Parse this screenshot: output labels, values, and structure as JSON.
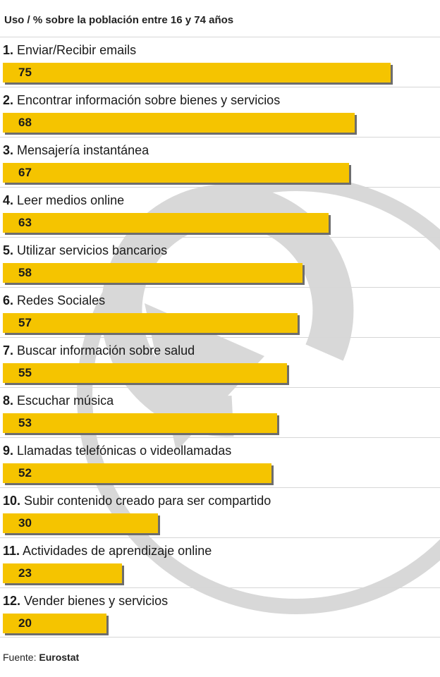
{
  "title": "Uso / % sobre la población entre 16 y 74 años",
  "source": {
    "label": "Fuente:",
    "name": "Eurostat"
  },
  "colors": {
    "bar": "#f5c400",
    "shadow": "#6d6d6d",
    "divider": "#d6d6d6",
    "watermark": "#d8d8d8"
  },
  "watermark_icon": "circular-arrow-logo-icon",
  "chart_data": {
    "type": "bar",
    "orientation": "horizontal",
    "title": "Uso / % sobre la población entre 16 y 74 años",
    "xlim": [
      0,
      84
    ],
    "grid": false,
    "legend": "none",
    "items": [
      {
        "rank": "1.",
        "label": "Enviar/Recibir emails",
        "value": 75
      },
      {
        "rank": "2.",
        "label": "Encontrar información sobre bienes y servicios",
        "value": 68
      },
      {
        "rank": "3.",
        "label": "Mensajería instantánea",
        "value": 67
      },
      {
        "rank": "4.",
        "label": "Leer medios online",
        "value": 63
      },
      {
        "rank": "5.",
        "label": "Utilizar servicios bancarios",
        "value": 58
      },
      {
        "rank": "6.",
        "label": "Redes Sociales",
        "value": 57
      },
      {
        "rank": "7.",
        "label": "Buscar información sobre salud",
        "value": 55
      },
      {
        "rank": "8.",
        "label": "Escuchar música",
        "value": 53
      },
      {
        "rank": "9.",
        "label": "Llamadas telefónicas o videollamadas",
        "value": 52
      },
      {
        "rank": "10.",
        "label": "Subir contenido creado para ser compartido",
        "value": 30
      },
      {
        "rank": "11.",
        "label": "Actividades de aprendizaje online",
        "value": 23
      },
      {
        "rank": "12.",
        "label": "Vender bienes y servicios",
        "value": 20
      }
    ]
  }
}
